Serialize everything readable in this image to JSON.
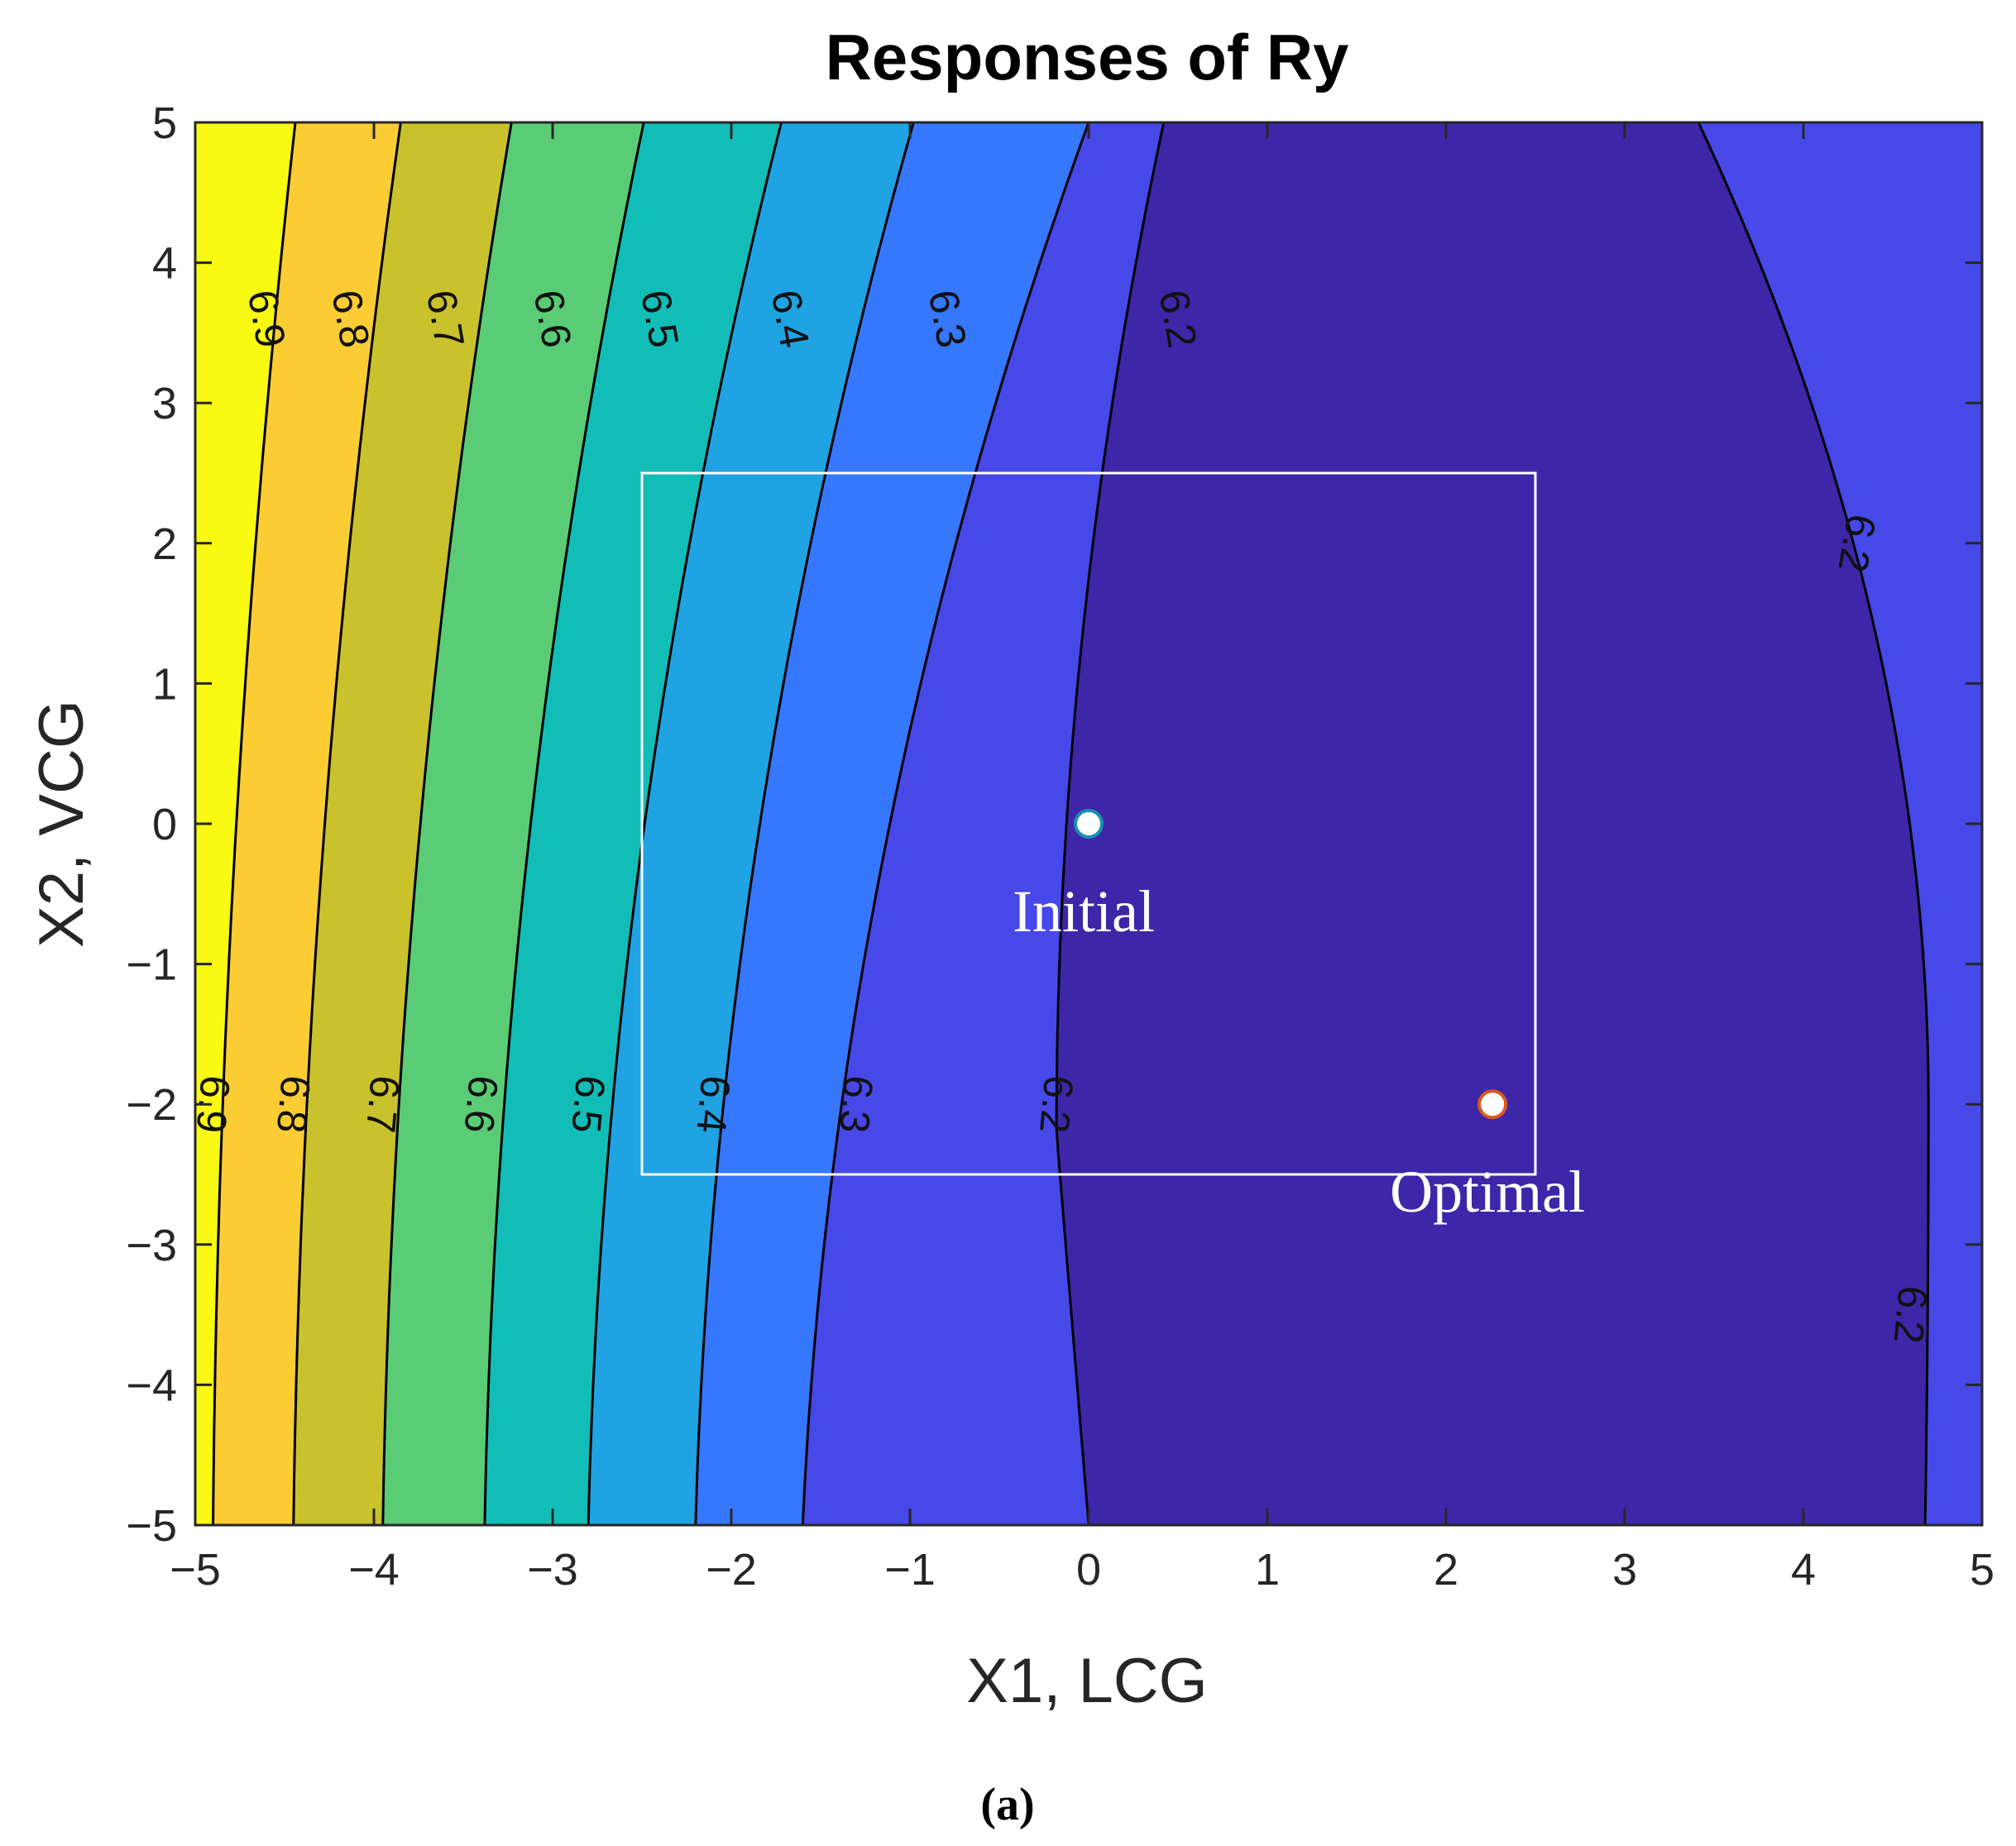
{
  "chart_data": {
    "type": "contour",
    "title": "Responses of Ry",
    "xlabel": "X1, LCG",
    "ylabel": "X2, VCG",
    "xlim": [
      -5,
      5
    ],
    "ylim": [
      -5,
      5
    ],
    "xticks": [
      -5,
      -4,
      -3,
      -2,
      -1,
      0,
      1,
      2,
      3,
      4,
      5
    ],
    "yticks": [
      -5,
      -4,
      -3,
      -2,
      -1,
      0,
      1,
      2,
      3,
      4,
      5
    ],
    "xtick_labels": [
      "−5",
      "−4",
      "−3",
      "−2",
      "−1",
      "0",
      "1",
      "2",
      "3",
      "4",
      "5"
    ],
    "ytick_labels": [
      "−5",
      "−4",
      "−3",
      "−2",
      "−1",
      "0",
      "1",
      "2",
      "3",
      "4",
      "5"
    ],
    "contour_levels": [
      6.2,
      6.3,
      6.4,
      6.5,
      6.6,
      6.7,
      6.8,
      6.9
    ],
    "contour_level_labels": [
      "6.2",
      "6.3",
      "6.4",
      "6.5",
      "6.6",
      "6.7",
      "6.8",
      "6.9"
    ],
    "fill_colors": [
      "#3e26a8",
      "#4748e8",
      "#3577fd",
      "#1fa3e3",
      "#12bdb8",
      "#5acc76",
      "#c9c22c",
      "#fccc34",
      "#f9fa14"
    ],
    "contour_label_positions": [
      {
        "text": "6.9",
        "x": -4.6,
        "y": 3.6
      },
      {
        "text": "6.8",
        "x": -4.13,
        "y": 3.6
      },
      {
        "text": "6.7",
        "x": -3.6,
        "y": 3.6
      },
      {
        "text": "6.6",
        "x": -3.0,
        "y": 3.6
      },
      {
        "text": "6.5",
        "x": -2.4,
        "y": 3.6
      },
      {
        "text": "6.4",
        "x": -1.67,
        "y": 3.6
      },
      {
        "text": "6.3",
        "x": -0.79,
        "y": 3.6
      },
      {
        "text": "6.2",
        "x": 0.5,
        "y": 3.6
      },
      {
        "text": "6.2",
        "x": 4.3,
        "y": 2.0
      },
      {
        "text": "6.2",
        "x": 4.6,
        "y": -3.5
      },
      {
        "text": "6.9",
        "x": -4.9,
        "y": -2.0
      },
      {
        "text": "6.8",
        "x": -4.45,
        "y": -2.0
      },
      {
        "text": "6.7",
        "x": -3.95,
        "y": -2.0
      },
      {
        "text": "6.6",
        "x": -3.4,
        "y": -2.0
      },
      {
        "text": "6.5",
        "x": -2.8,
        "y": -2.0
      },
      {
        "text": "6.4",
        "x": -2.1,
        "y": -2.0
      },
      {
        "text": "6.3",
        "x": -1.3,
        "y": -2.0
      },
      {
        "text": "6.2",
        "x": -0.18,
        "y": -2.0
      }
    ],
    "design_region": {
      "x": [
        -2.5,
        2.5
      ],
      "y": [
        -2.5,
        2.5
      ]
    },
    "points": [
      {
        "name": "Initial",
        "x": 0,
        "y": 0,
        "edge_color": "#1a8fb0"
      },
      {
        "name": "Optimal",
        "x": 2.26,
        "y": -2.0,
        "edge_color": "#d95a1e"
      }
    ],
    "grid": false
  },
  "caption": "(a)"
}
